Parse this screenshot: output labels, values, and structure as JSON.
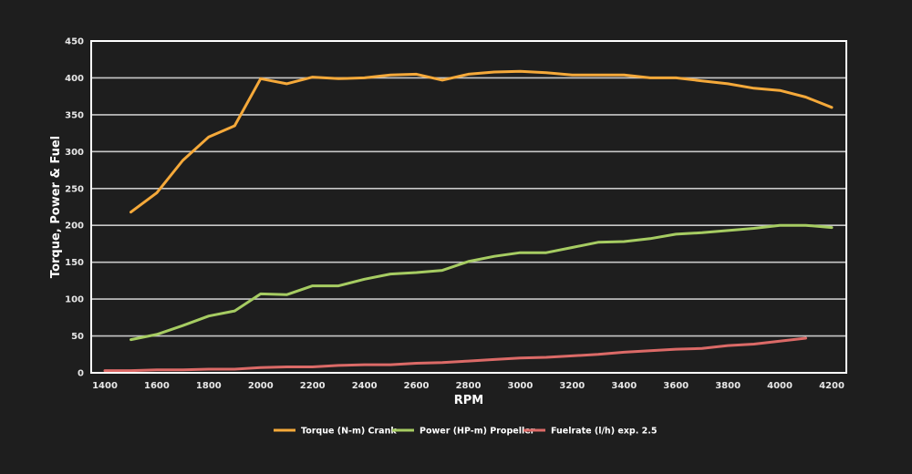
{
  "chart_data": {
    "type": "line",
    "title": "",
    "xlabel": "RPM",
    "ylabel": "Torque, Power & Fuel",
    "xlim": [
      1400,
      4200
    ],
    "ylim": [
      0,
      450
    ],
    "grid": true,
    "legend_position": "bottom-center",
    "x_ticks": [
      1400,
      1600,
      1800,
      2000,
      2200,
      2400,
      2600,
      2800,
      3000,
      3200,
      3400,
      3600,
      3800,
      4000,
      4200
    ],
    "y_ticks": [
      0,
      50,
      100,
      150,
      200,
      250,
      300,
      350,
      400,
      450
    ],
    "series": [
      {
        "name": "Torque (N-m) Crank",
        "color": "#f5a93a",
        "x": [
          1500,
          1600,
          1700,
          1800,
          1900,
          2000,
          2100,
          2200,
          2300,
          2400,
          2500,
          2600,
          2700,
          2800,
          2900,
          3000,
          3100,
          3200,
          3300,
          3400,
          3500,
          3600,
          3700,
          3800,
          3900,
          4000,
          4100,
          4200
        ],
        "values": [
          218,
          244,
          288,
          320,
          335,
          399,
          392,
          401,
          399,
          400,
          404,
          405,
          397,
          405,
          408,
          409,
          407,
          404,
          404,
          404,
          400,
          400,
          396,
          392,
          386,
          383,
          374,
          360
        ]
      },
      {
        "name": "Power (HP-m) Propeller",
        "color": "#a6cc62",
        "x": [
          1500,
          1600,
          1700,
          1800,
          1900,
          2000,
          2100,
          2200,
          2300,
          2400,
          2500,
          2600,
          2700,
          2800,
          2900,
          3000,
          3100,
          3200,
          3300,
          3400,
          3500,
          3600,
          3700,
          3800,
          3900,
          4000,
          4100,
          4200
        ],
        "values": [
          45,
          52,
          64,
          77,
          84,
          107,
          106,
          118,
          118,
          127,
          134,
          136,
          139,
          151,
          158,
          163,
          163,
          170,
          177,
          178,
          182,
          188,
          190,
          193,
          196,
          200,
          200,
          197
        ]
      },
      {
        "name": "Fuelrate (l/h) exp. 2.5",
        "color": "#dc6a67",
        "x": [
          1400,
          1500,
          1600,
          1700,
          1800,
          1900,
          2000,
          2100,
          2200,
          2300,
          2400,
          2500,
          2600,
          2700,
          2800,
          2900,
          3000,
          3100,
          3200,
          3300,
          3400,
          3500,
          3600,
          3700,
          3800,
          3900,
          4000,
          4100
        ],
        "values": [
          3,
          3,
          4,
          4,
          5,
          5,
          7,
          8,
          8,
          10,
          11,
          11,
          13,
          14,
          16,
          18,
          20,
          21,
          23,
          25,
          28,
          30,
          32,
          33,
          37,
          39,
          43,
          47
        ]
      }
    ]
  }
}
